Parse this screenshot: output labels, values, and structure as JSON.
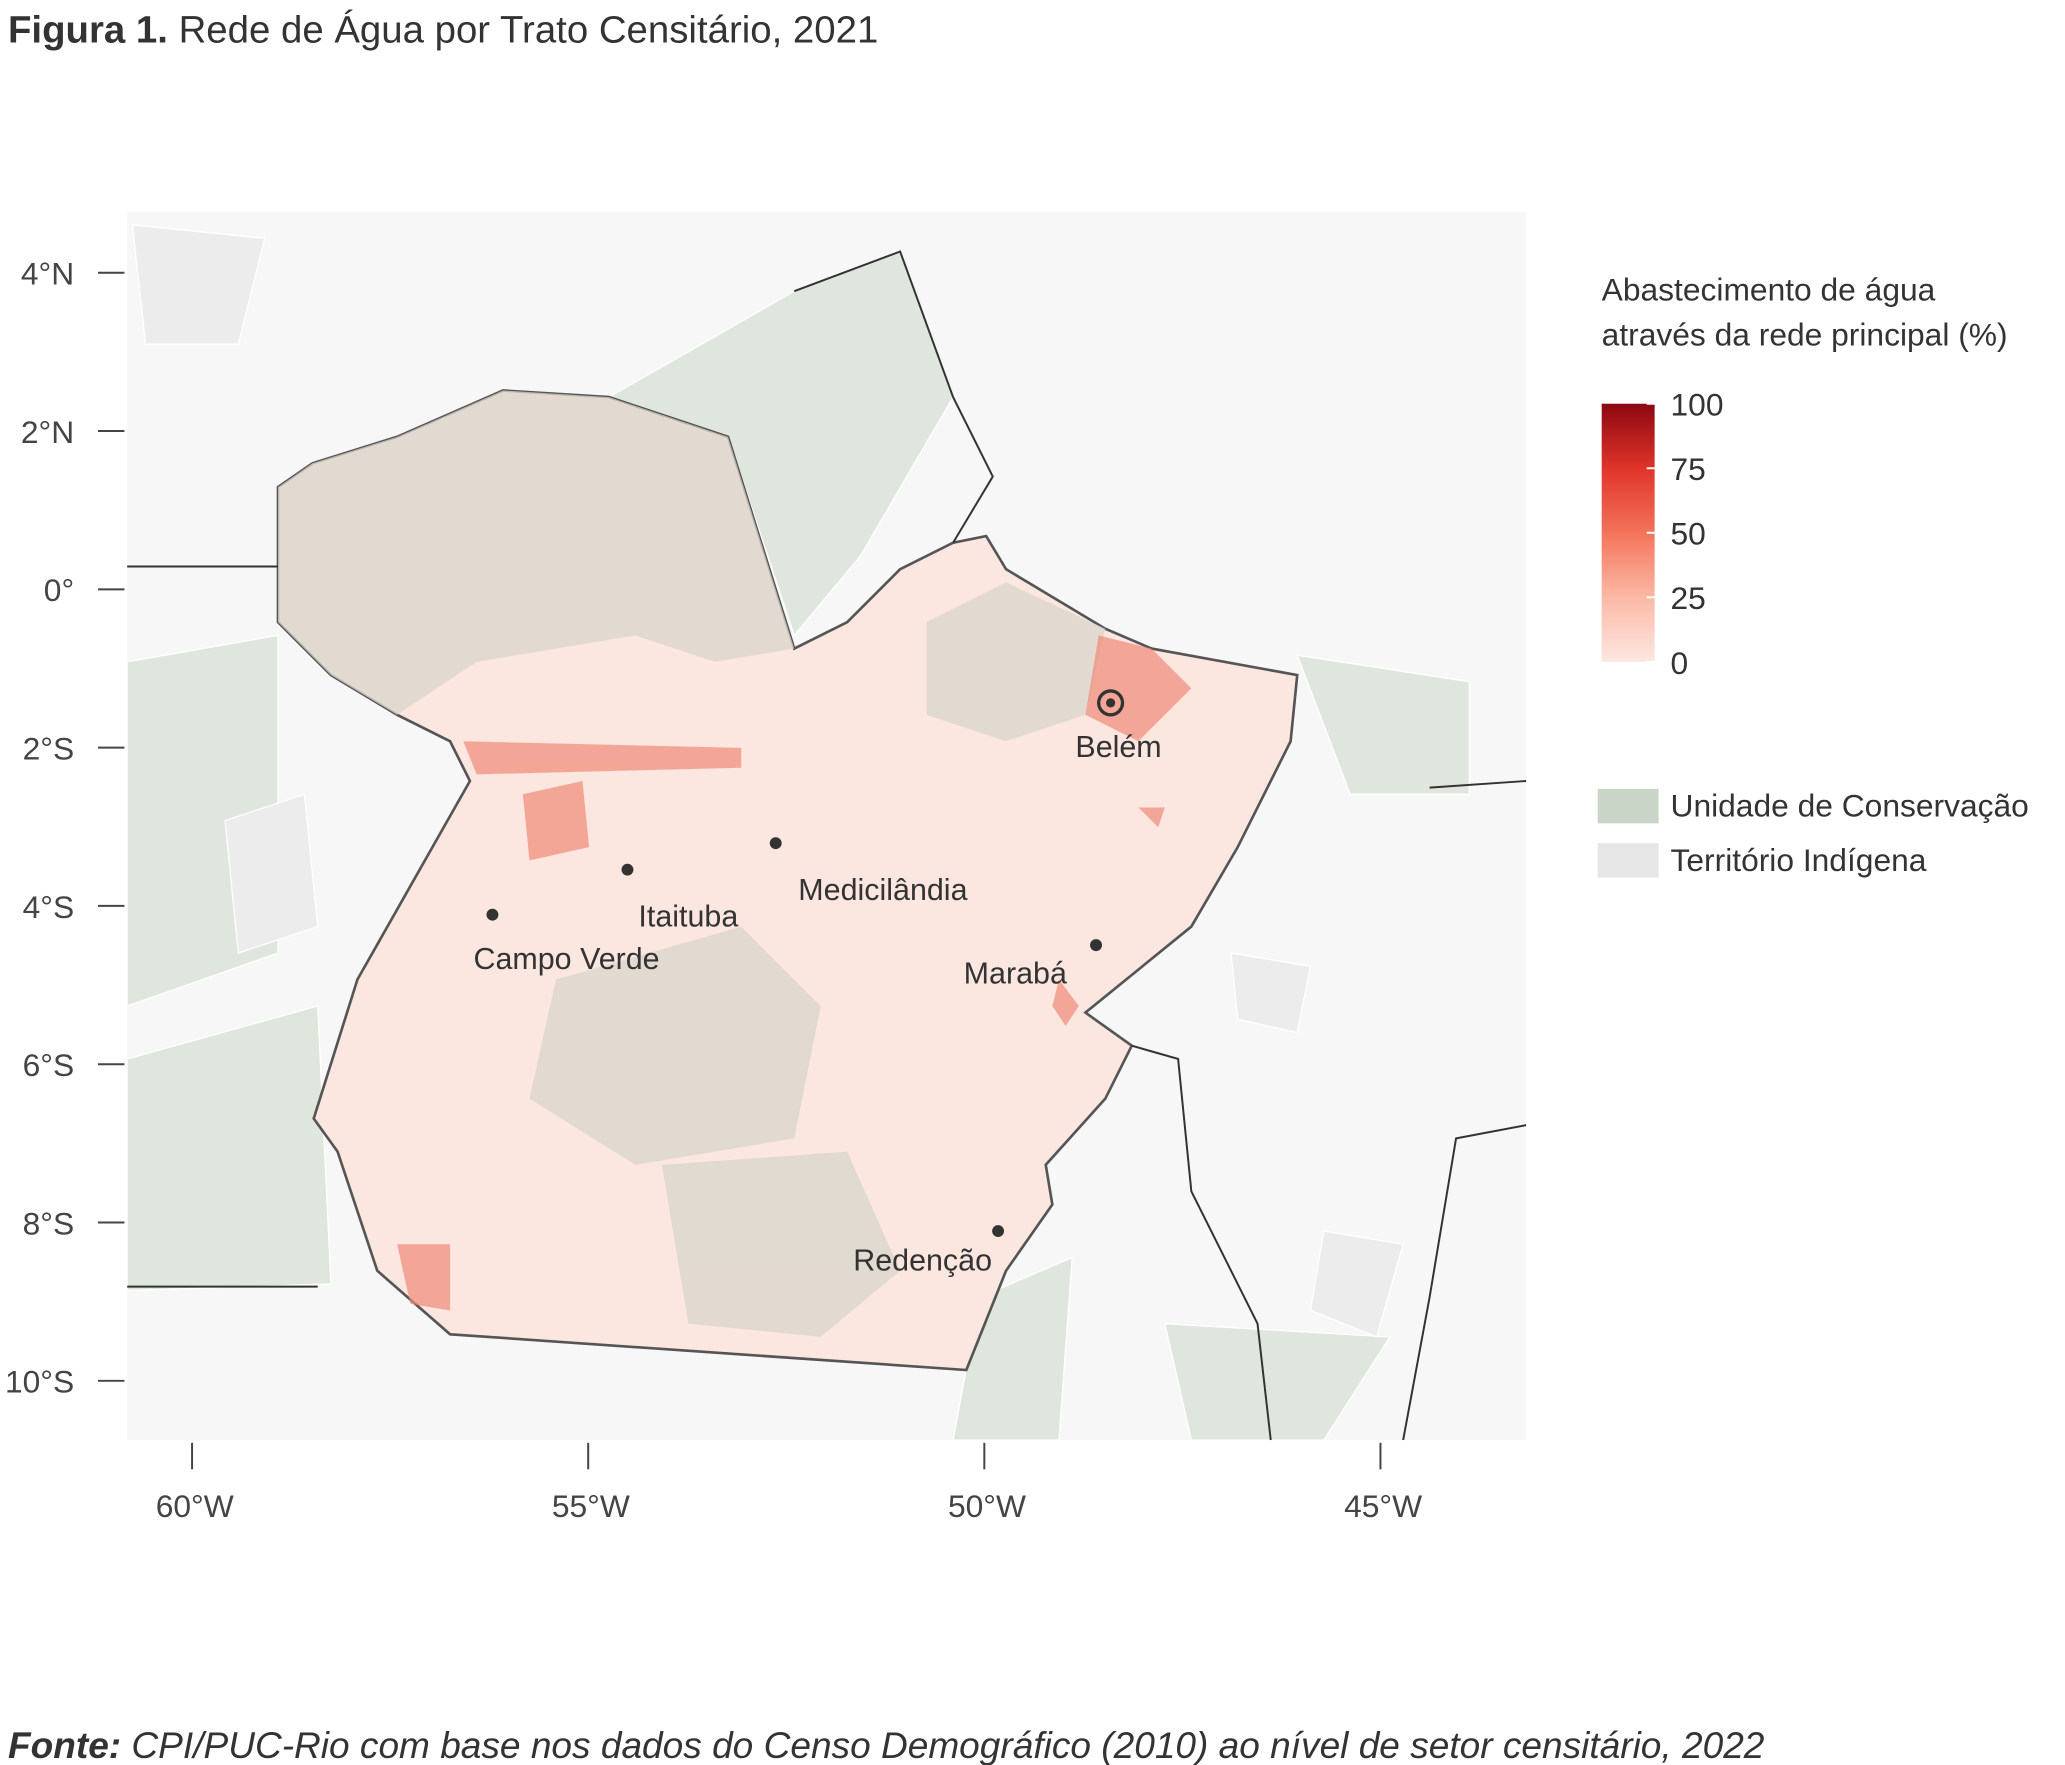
{
  "title": {
    "lead": "Figura 1.",
    "text": "Rede de Água por Trato Censitário, 2021"
  },
  "map": {
    "xlim": [
      -60.82,
      -43.16
    ],
    "ylim": [
      -10.75,
      4.77
    ],
    "xticks": [
      {
        "value": -60,
        "label": "60°W"
      },
      {
        "value": -55,
        "label": "55°W"
      },
      {
        "value": -50,
        "label": "50°W"
      },
      {
        "value": -45,
        "label": "45°W"
      }
    ],
    "yticks": [
      {
        "value": 4,
        "label": "4°N"
      },
      {
        "value": 2,
        "label": "2°N"
      },
      {
        "value": 0,
        "label": "0°"
      },
      {
        "value": -2,
        "label": "2°S"
      },
      {
        "value": -4,
        "label": "4°S"
      },
      {
        "value": -6,
        "label": "6°S"
      },
      {
        "value": -8,
        "label": "8°S"
      },
      {
        "value": -10,
        "label": "10°S"
      }
    ],
    "cities": [
      "Belém",
      "Medicilândia",
      "Itaituba",
      "Campo Verde",
      "Marabá",
      "Redenção"
    ]
  },
  "legend": {
    "title": [
      "Abastecimento de água",
      "através da rede principal (%)"
    ],
    "clim": [
      0,
      100
    ],
    "ticks": [
      0,
      25,
      50,
      75,
      100
    ],
    "categories": [
      {
        "name": "Unidade de Conservação",
        "color": "#c9d6c7"
      },
      {
        "name": "Território Indígena",
        "color": "#e6e6e6"
      }
    ]
  },
  "source": {
    "lead": "Fonte:",
    "text": "CPI/PUC-Rio com base nos dados do Censo Demográfico (2010) ao nível de setor censitário, 2022"
  }
}
